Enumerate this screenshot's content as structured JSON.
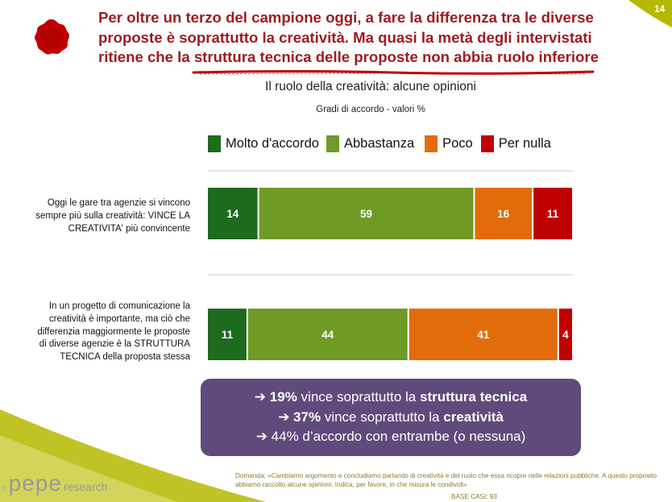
{
  "page": {
    "number": "14"
  },
  "headline": {
    "lines": [
      "Per oltre un terzo del campione oggi, a fare la differenza tra le diverse",
      "proposte è soprattutto la creatività. Ma quasi la metà degli intervistati",
      "ritiene che la struttura tecnica delle proposte non abbia ruolo inferiore"
    ]
  },
  "colors": {
    "molto": "#1e6b1e",
    "abbastanza": "#6f9a25",
    "poco": "#e36c0a",
    "nulla": "#c00000",
    "headline": "#9e1b1e",
    "callout_bg": "#604a7b",
    "corner": "#b5b800"
  },
  "chart_data": {
    "type": "bar",
    "orientation": "horizontal",
    "stacked": true,
    "title": "Il ruolo della creatività: alcune opinioni",
    "subtitle": "Gradi di accordo - valori  %",
    "categories": [
      "Oggi le gare tra agenzie si vincono sempre più sulla creatività: VINCE LA CREATIVITA' più convincente",
      "In un progetto di comunicazione la creatività è importante, ma ciò che differenzia maggiormente le proposte di diverse agenzie è la STRUTTURA TECNICA della proposta stessa"
    ],
    "category_lines": [
      [
        "Oggi le gare tra agenzie si vincono",
        "sempre più sulla creatività: VINCE LA",
        "CREATIVITA' più convincente"
      ],
      [
        "In un progetto di comunicazione la",
        "creatività è importante, ma ciò che",
        "differenzia maggiormente le proposte",
        "di diverse agenzie è la STRUTTURA",
        "TECNICA della proposta stessa"
      ]
    ],
    "series": [
      {
        "name": "Molto d'accordo",
        "color": "#1e6b1e",
        "values": [
          14,
          11
        ]
      },
      {
        "name": "Abbastanza",
        "color": "#6f9a25",
        "values": [
          59,
          44
        ]
      },
      {
        "name": "Poco",
        "color": "#e36c0a",
        "values": [
          16,
          41
        ]
      },
      {
        "name": "Per nulla",
        "color": "#c00000",
        "values": [
          11,
          4
        ]
      }
    ],
    "xlim": [
      0,
      100
    ],
    "legend_position": "top"
  },
  "callout": {
    "lines": [
      {
        "arrow": "➔",
        "pct": "19%",
        "pre": "vince soprattutto la",
        "bold": "struttura tecnica"
      },
      {
        "arrow": "➔",
        "pct": "37%",
        "pre": "vince soprattutto la",
        "bold": "creatività"
      },
      {
        "arrow": "➔",
        "text": "44% d’accordo con entrambe (o nessuna)"
      }
    ]
  },
  "footer": {
    "question": "Domanda: «Cambiamo argomento e concludiamo parlando di creatività e del ruolo che essa ricopre nelle relazioni pubbliche. A questo proposito abbiamo raccolto alcune opinioni. Indica, per favore, in che misura le condividi»",
    "base": "BASE CASI: 93"
  },
  "brand": {
    "reg": "®",
    "name": "pepe",
    "sub": "research"
  }
}
